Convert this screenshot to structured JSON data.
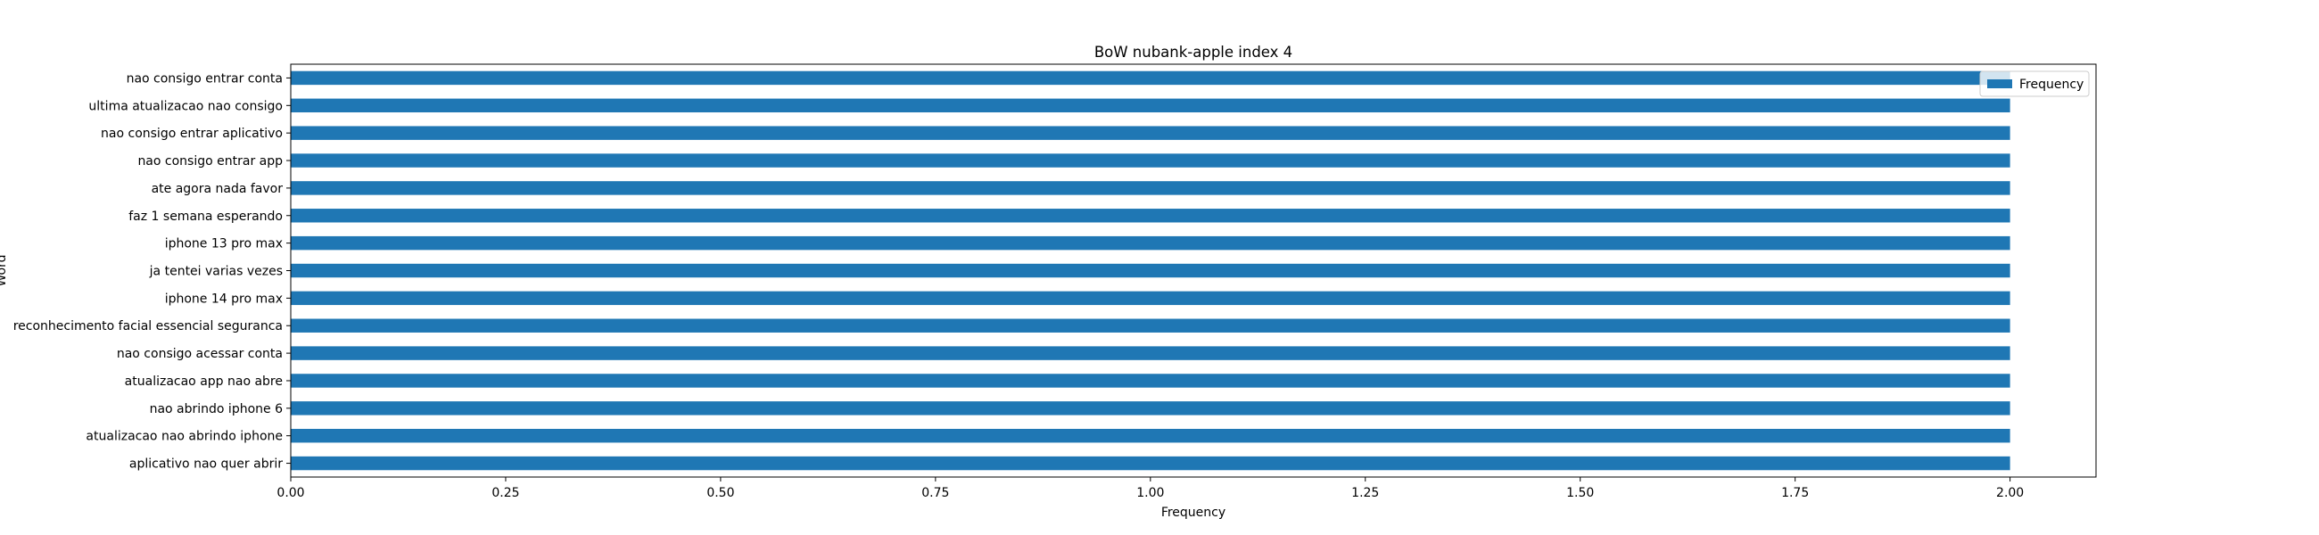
{
  "chart_data": {
    "type": "bar",
    "orientation": "horizontal",
    "title": "BoW nubank-apple index 4",
    "xlabel": "Frequency",
    "ylabel": "Word",
    "xlim": [
      0,
      2.1
    ],
    "xticks": [
      0.0,
      0.25,
      0.5,
      0.75,
      1.0,
      1.25,
      1.5,
      1.75,
      2.0
    ],
    "xtick_labels": [
      "0.00",
      "0.25",
      "0.50",
      "0.75",
      "1.00",
      "1.25",
      "1.50",
      "1.75",
      "2.00"
    ],
    "categories": [
      "nao consigo entrar conta",
      "ultima atualizacao nao consigo",
      "nao consigo entrar aplicativo",
      "nao consigo entrar app",
      "ate agora nada favor",
      "faz 1 semana esperando",
      "iphone 13 pro max",
      "ja tentei varias vezes",
      "iphone 14 pro max",
      "reconhecimento facial essencial seguranca",
      "nao consigo acessar conta",
      "atualizacao app nao abre",
      "nao abrindo iphone 6",
      "atualizacao nao abrindo iphone",
      "aplicativo nao quer abrir"
    ],
    "series": [
      {
        "name": "Frequency",
        "color": "#1f77b4",
        "values": [
          2,
          2,
          2,
          2,
          2,
          2,
          2,
          2,
          2,
          2,
          2,
          2,
          2,
          2,
          2
        ]
      }
    ],
    "legend": {
      "position": "upper-right"
    },
    "grid": false
  }
}
